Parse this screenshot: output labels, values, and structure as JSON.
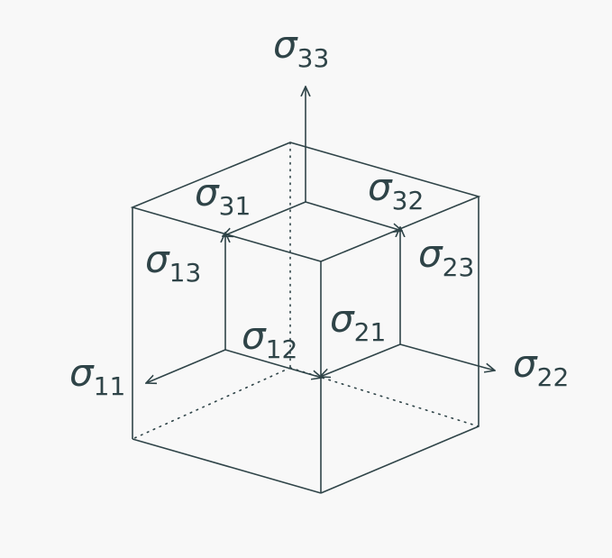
{
  "diagram": {
    "labels": {
      "s11": {
        "sym": "σ",
        "sub": "11"
      },
      "s12": {
        "sym": "σ",
        "sub": "12"
      },
      "s13": {
        "sym": "σ",
        "sub": "13"
      },
      "s21": {
        "sym": "σ",
        "sub": "21"
      },
      "s22": {
        "sym": "σ",
        "sub": "22"
      },
      "s23": {
        "sym": "σ",
        "sub": "23"
      },
      "s31": {
        "sym": "σ",
        "sub": "31"
      },
      "s32": {
        "sym": "σ",
        "sub": "32"
      },
      "s33": {
        "sym": "σ",
        "sub": "33"
      }
    }
  }
}
